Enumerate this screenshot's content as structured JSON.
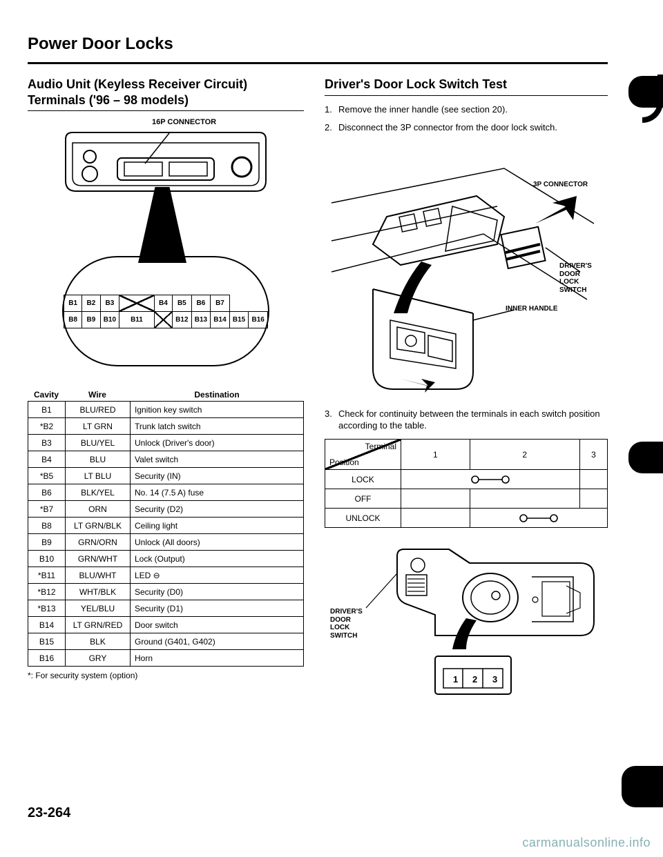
{
  "page_title": "Power Door Locks",
  "page_number": "23-264",
  "watermark": "carmanualsonline.info",
  "left": {
    "heading": "Audio Unit (Keyless Receiver Circuit) Terminals ('96 – 98 models)",
    "connector_label": "16P CONNECTOR",
    "pin_grid": {
      "row1": [
        "B1",
        "B2",
        "B3",
        "X",
        "B4",
        "B5",
        "B6",
        "B7"
      ],
      "row2": [
        "B8",
        "B9",
        "B10",
        "B11",
        "X",
        "B12",
        "B13",
        "B14",
        "B15",
        "B16"
      ]
    },
    "table_headers": {
      "cavity": "Cavity",
      "wire": "Wire",
      "destination": "Destination"
    },
    "rows": [
      {
        "cavity": "B1",
        "wire": "BLU/RED",
        "dest": "Ignition key switch"
      },
      {
        "cavity": "*B2",
        "wire": "LT GRN",
        "dest": "Trunk latch switch"
      },
      {
        "cavity": "B3",
        "wire": "BLU/YEL",
        "dest": "Unlock (Driver's door)"
      },
      {
        "cavity": "B4",
        "wire": "BLU",
        "dest": "Valet switch"
      },
      {
        "cavity": "*B5",
        "wire": "LT BLU",
        "dest": "Security (IN)"
      },
      {
        "cavity": "B6",
        "wire": "BLK/YEL",
        "dest": "No. 14 (7.5 A) fuse"
      },
      {
        "cavity": "*B7",
        "wire": "ORN",
        "dest": "Security (D2)"
      },
      {
        "cavity": "B8",
        "wire": "LT GRN/BLK",
        "dest": "Ceiling light"
      },
      {
        "cavity": "B9",
        "wire": "GRN/ORN",
        "dest": "Unlock (All doors)"
      },
      {
        "cavity": "B10",
        "wire": "GRN/WHT",
        "dest": "Lock (Output)"
      },
      {
        "cavity": "*B11",
        "wire": "BLU/WHT",
        "dest": "LED ⊖"
      },
      {
        "cavity": "*B12",
        "wire": "WHT/BLK",
        "dest": "Security (D0)"
      },
      {
        "cavity": "*B13",
        "wire": "YEL/BLU",
        "dest": "Security (D1)"
      },
      {
        "cavity": "B14",
        "wire": "LT GRN/RED",
        "dest": "Door switch"
      },
      {
        "cavity": "B15",
        "wire": "BLK",
        "dest": "Ground (G401, G402)"
      },
      {
        "cavity": "B16",
        "wire": "GRY",
        "dest": "Horn"
      }
    ],
    "footnote": "*: For security system (option)"
  },
  "right": {
    "heading": "Driver's Door Lock Switch Test",
    "steps": [
      {
        "n": "1.",
        "t": "Remove the inner handle (see section 20)."
      },
      {
        "n": "2.",
        "t": "Disconnect the 3P connector from the door lock switch."
      },
      {
        "n": "3.",
        "t": "Check for continuity between the terminals in each switch position according to the table."
      }
    ],
    "labels": {
      "conn3p": "3P CONNECTOR",
      "driver_switch": "DRIVER'S\nDOOR\nLOCK\nSWITCH",
      "inner_handle": "INNER HANDLE"
    },
    "cont_table": {
      "axis_top": "Terminal",
      "axis_left": "Position",
      "cols": [
        "1",
        "2",
        "3"
      ],
      "rows": [
        "LOCK",
        "OFF",
        "UNLOCK"
      ],
      "continuity": {
        "LOCK": [
          true,
          true,
          false
        ],
        "OFF": [
          false,
          false,
          false
        ],
        "UNLOCK": [
          false,
          true,
          true
        ]
      }
    },
    "switch_pins": [
      "1",
      "2",
      "3"
    ]
  }
}
